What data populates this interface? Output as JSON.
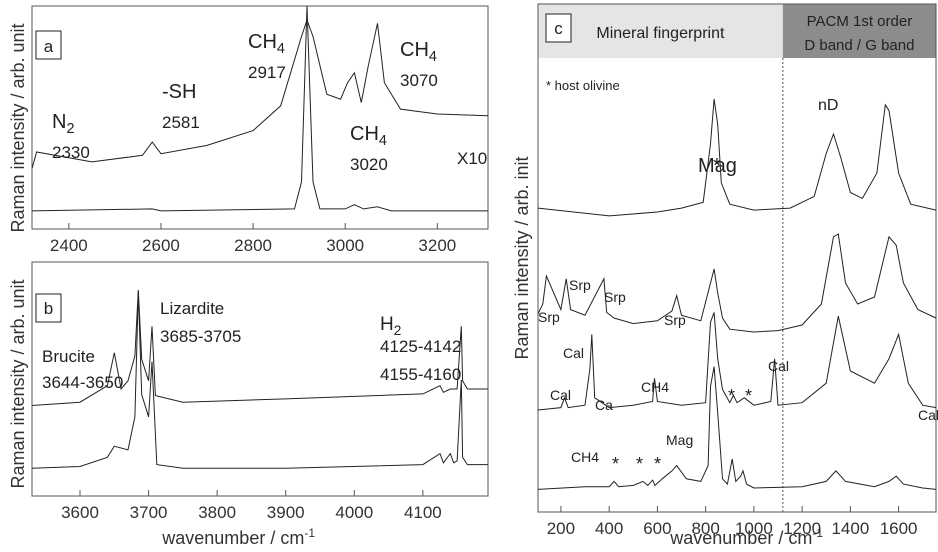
{
  "chart_data": [
    {
      "panel": "a",
      "type": "line",
      "xlim": [
        2320,
        3310
      ],
      "x_ticks": [
        2400,
        2600,
        2800,
        3000,
        3200
      ],
      "ylabel": "Raman intensity / arb. unit",
      "grid": false,
      "scale_note": "X10",
      "annotations": [
        {
          "species": "N",
          "sub": "2",
          "value": "2330"
        },
        {
          "species": "-SH",
          "sub": "",
          "value": "2581"
        },
        {
          "species": "CH",
          "sub": "4",
          "value": "2917"
        },
        {
          "species": "CH",
          "sub": "4",
          "value": "3020"
        },
        {
          "species": "CH",
          "sub": "4",
          "value": "3070"
        }
      ],
      "series": [
        {
          "x": [
            2320,
            2330,
            2450,
            2560,
            2581,
            2600,
            2700,
            2800,
            2860,
            2905,
            2917,
            2930,
            2960,
            2990,
            3005,
            3020,
            3035,
            3050,
            3070,
            3085,
            3120,
            3200,
            3310
          ],
          "y": [
            0.1,
            0.2,
            0.14,
            0.18,
            0.26,
            0.19,
            0.24,
            0.33,
            0.48,
            0.9,
            1.0,
            0.9,
            0.55,
            0.52,
            0.62,
            0.68,
            0.5,
            0.72,
            0.98,
            0.62,
            0.46,
            0.43,
            0.42
          ]
        },
        {
          "x": [
            2320,
            2581,
            2600,
            2890,
            2905,
            2917,
            2930,
            2945,
            3000,
            3020,
            3040,
            3070,
            3100,
            3310
          ],
          "y": [
            0.01,
            0.02,
            0.01,
            0.02,
            0.15,
            1.0,
            0.15,
            0.02,
            0.02,
            0.04,
            0.02,
            0.03,
            0.01,
            0.01
          ]
        }
      ]
    },
    {
      "panel": "b",
      "type": "line",
      "xlim": [
        3530,
        4195
      ],
      "x_ticks": [
        3600,
        3700,
        3800,
        3900,
        4000,
        4100
      ],
      "ylabel": "Raman intensity / arb. unit",
      "xlabel": "wavenumber / cm",
      "xlabel_sup": "-1",
      "grid": false,
      "annotations": [
        {
          "name": "Brucite",
          "range": "3644-3650"
        },
        {
          "name": "Lizardite",
          "range": "3685-3705"
        },
        {
          "name": "H",
          "sub": "2",
          "range": "4125-4142",
          "range2": "4155-4160"
        }
      ],
      "series": [
        {
          "x": [
            3530,
            3600,
            3640,
            3650,
            3660,
            3670,
            3680,
            3685,
            3690,
            3700,
            3705,
            3710,
            3750,
            3900,
            4100,
            4125,
            4130,
            4140,
            4150,
            4156,
            4158,
            4165,
            4195
          ],
          "y": [
            0.3,
            0.32,
            0.42,
            0.62,
            0.4,
            0.45,
            0.6,
            1.0,
            0.58,
            0.45,
            0.78,
            0.36,
            0.32,
            0.34,
            0.37,
            0.42,
            0.38,
            0.4,
            0.4,
            0.78,
            0.45,
            0.4,
            0.4
          ]
        },
        {
          "x": [
            3530,
            3600,
            3640,
            3650,
            3670,
            3680,
            3685,
            3690,
            3700,
            3705,
            3712,
            3750,
            3900,
            4100,
            4125,
            4130,
            4140,
            4145,
            4150,
            4156,
            4158,
            4165,
            4195
          ],
          "y": [
            0.02,
            0.03,
            0.08,
            0.14,
            0.12,
            0.3,
            0.98,
            0.42,
            0.3,
            0.6,
            0.04,
            0.02,
            0.02,
            0.04,
            0.1,
            0.05,
            0.1,
            0.05,
            0.06,
            0.5,
            0.08,
            0.04,
            0.04
          ]
        }
      ]
    },
    {
      "panel": "c",
      "type": "line",
      "xlim": [
        105,
        1755
      ],
      "x_ticks": [
        200,
        400,
        600,
        800,
        1000,
        1200,
        1400,
        1600
      ],
      "ylabel": "Raman intensity / arb. init",
      "xlabel": "wavenumber / cm",
      "xlabel_sup": "-1",
      "grid": false,
      "regions": [
        {
          "label": "Mineral fingerprint",
          "from": 105,
          "to": 1120,
          "color": "#e5e5e5"
        },
        {
          "label": "PACM 1st order",
          "label2": "D band / G band",
          "from": 1120,
          "to": 1755,
          "color": "#8c8c8c"
        }
      ],
      "legend_note": "* host olivine",
      "annotations": [
        "nD",
        "Srp",
        "Srp",
        "Srp",
        "Srp",
        "Cal",
        "Cal",
        "Cal",
        "Cal",
        "Ca",
        "CH4",
        "CH4",
        "Mag",
        "Mag",
        "*",
        "*",
        "*",
        "*",
        "*",
        "*",
        "*",
        "*"
      ],
      "series": [
        {
          "x": [
            105,
            400,
            600,
            700,
            790,
            820,
            835,
            850,
            865,
            900,
            1000,
            1150,
            1250,
            1300,
            1330,
            1360,
            1400,
            1450,
            1510,
            1545,
            1560,
            1600,
            1650,
            1755
          ],
          "y": [
            0.42,
            0.38,
            0.4,
            0.42,
            0.45,
            0.75,
            0.98,
            0.85,
            0.55,
            0.44,
            0.41,
            0.42,
            0.48,
            0.7,
            0.8,
            0.68,
            0.5,
            0.47,
            0.6,
            0.95,
            0.92,
            0.6,
            0.44,
            0.41
          ]
        },
        {
          "x": [
            105,
            125,
            140,
            200,
            222,
            240,
            300,
            378,
            390,
            420,
            500,
            600,
            660,
            680,
            700,
            780,
            820,
            835,
            850,
            870,
            900,
            1000,
            1100,
            1200,
            1280,
            1330,
            1350,
            1380,
            1430,
            1500,
            1560,
            1590,
            1620,
            1680,
            1755
          ],
          "y": [
            0.33,
            0.4,
            0.6,
            0.36,
            0.58,
            0.36,
            0.32,
            0.58,
            0.34,
            0.3,
            0.26,
            0.28,
            0.35,
            0.46,
            0.32,
            0.28,
            0.55,
            0.65,
            0.48,
            0.3,
            0.22,
            0.2,
            0.21,
            0.25,
            0.4,
            0.88,
            0.9,
            0.55,
            0.4,
            0.45,
            0.88,
            0.82,
            0.55,
            0.36,
            0.3
          ]
        },
        {
          "x": [
            105,
            200,
            215,
            230,
            300,
            320,
            328,
            340,
            400,
            500,
            580,
            588,
            600,
            700,
            800,
            820,
            835,
            850,
            870,
            900,
            915,
            930,
            960,
            1000,
            1070,
            1086,
            1100,
            1200,
            1300,
            1350,
            1400,
            1500,
            1560,
            1600,
            1640,
            1700,
            1755
          ],
          "y": [
            0.18,
            0.2,
            0.28,
            0.2,
            0.22,
            0.52,
            0.8,
            0.28,
            0.2,
            0.22,
            0.25,
            0.44,
            0.25,
            0.22,
            0.24,
            0.9,
            0.98,
            0.6,
            0.35,
            0.24,
            0.3,
            0.24,
            0.28,
            0.22,
            0.25,
            0.6,
            0.22,
            0.24,
            0.4,
            0.95,
            0.5,
            0.4,
            0.6,
            0.8,
            0.4,
            0.22,
            0.2
          ]
        },
        {
          "x": [
            105,
            300,
            400,
            420,
            440,
            500,
            540,
            560,
            580,
            590,
            620,
            660,
            680,
            720,
            780,
            810,
            820,
            835,
            850,
            870,
            890,
            910,
            925,
            945,
            955,
            970,
            1000,
            1200,
            1300,
            1340,
            1380,
            1500,
            1560,
            1590,
            1620,
            1700,
            1755
          ],
          "y": [
            0.02,
            0.04,
            0.04,
            0.08,
            0.04,
            0.05,
            0.08,
            0.05,
            0.09,
            0.05,
            0.1,
            0.16,
            0.2,
            0.1,
            0.08,
            0.2,
            0.8,
            0.95,
            0.6,
            0.1,
            0.06,
            0.25,
            0.08,
            0.12,
            0.16,
            0.06,
            0.03,
            0.04,
            0.08,
            0.16,
            0.08,
            0.04,
            0.08,
            0.12,
            0.06,
            0.03,
            0.02
          ]
        }
      ]
    }
  ]
}
